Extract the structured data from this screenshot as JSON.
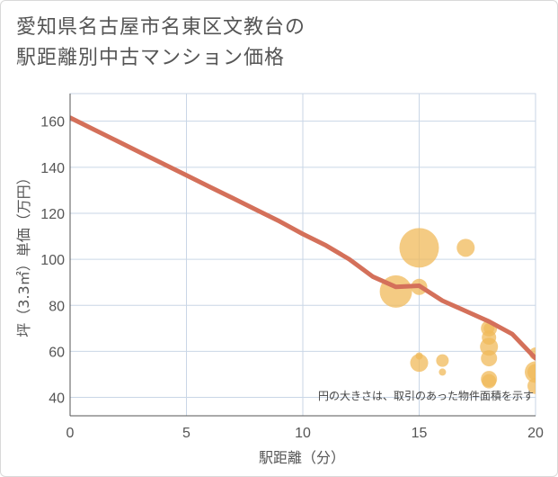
{
  "title": {
    "line1": "愛知県名古屋市名東区文教台の",
    "line2": "駅距離別中古マンション価格"
  },
  "chart_data": {
    "type": "scatter",
    "title": "愛知県名古屋市名東区文教台の駅距離別中古マンション価格",
    "xlabel": "駅距離（分）",
    "ylabel": "坪（3.3㎡）単価（万円）",
    "xlim": [
      0,
      20
    ],
    "ylim": [
      32,
      172
    ],
    "xticks": [
      0,
      5,
      10,
      15,
      20
    ],
    "yticks": [
      40,
      60,
      80,
      100,
      120,
      140,
      160
    ],
    "grid": true,
    "annotation": "円の大きさは、取引のあった物件面積を示す",
    "colors": {
      "bubble": "#f0b95a",
      "line": "#d4705a",
      "grid": "#c9d6e6"
    },
    "series": [
      {
        "name": "trend",
        "type": "line",
        "x": [
          0,
          1,
          2,
          3,
          4,
          5,
          6,
          7,
          8,
          9,
          10,
          11,
          12,
          13,
          14,
          15,
          16,
          17,
          18,
          19,
          20
        ],
        "y": [
          161.5,
          156.5,
          151.5,
          146.5,
          141.5,
          136.5,
          131.5,
          126.5,
          121.5,
          116.5,
          111,
          106,
          100,
          92.5,
          88,
          88.5,
          82,
          77.5,
          73,
          67.5,
          57
        ]
      },
      {
        "name": "transactions",
        "type": "bubble",
        "x": [
          15,
          17,
          14,
          15,
          15,
          15,
          16,
          16,
          18,
          18,
          18,
          18,
          18,
          18,
          18,
          20,
          20,
          20,
          20
        ],
        "y": [
          105,
          105,
          86,
          88,
          58,
          55,
          56,
          51,
          70,
          66,
          62,
          57,
          48,
          47,
          70,
          59,
          51,
          45,
          51
        ],
        "size": [
          22,
          10,
          18,
          9,
          4,
          10,
          7,
          4,
          9,
          8,
          10,
          9,
          9,
          8,
          6,
          7,
          12,
          9,
          9
        ]
      }
    ]
  }
}
